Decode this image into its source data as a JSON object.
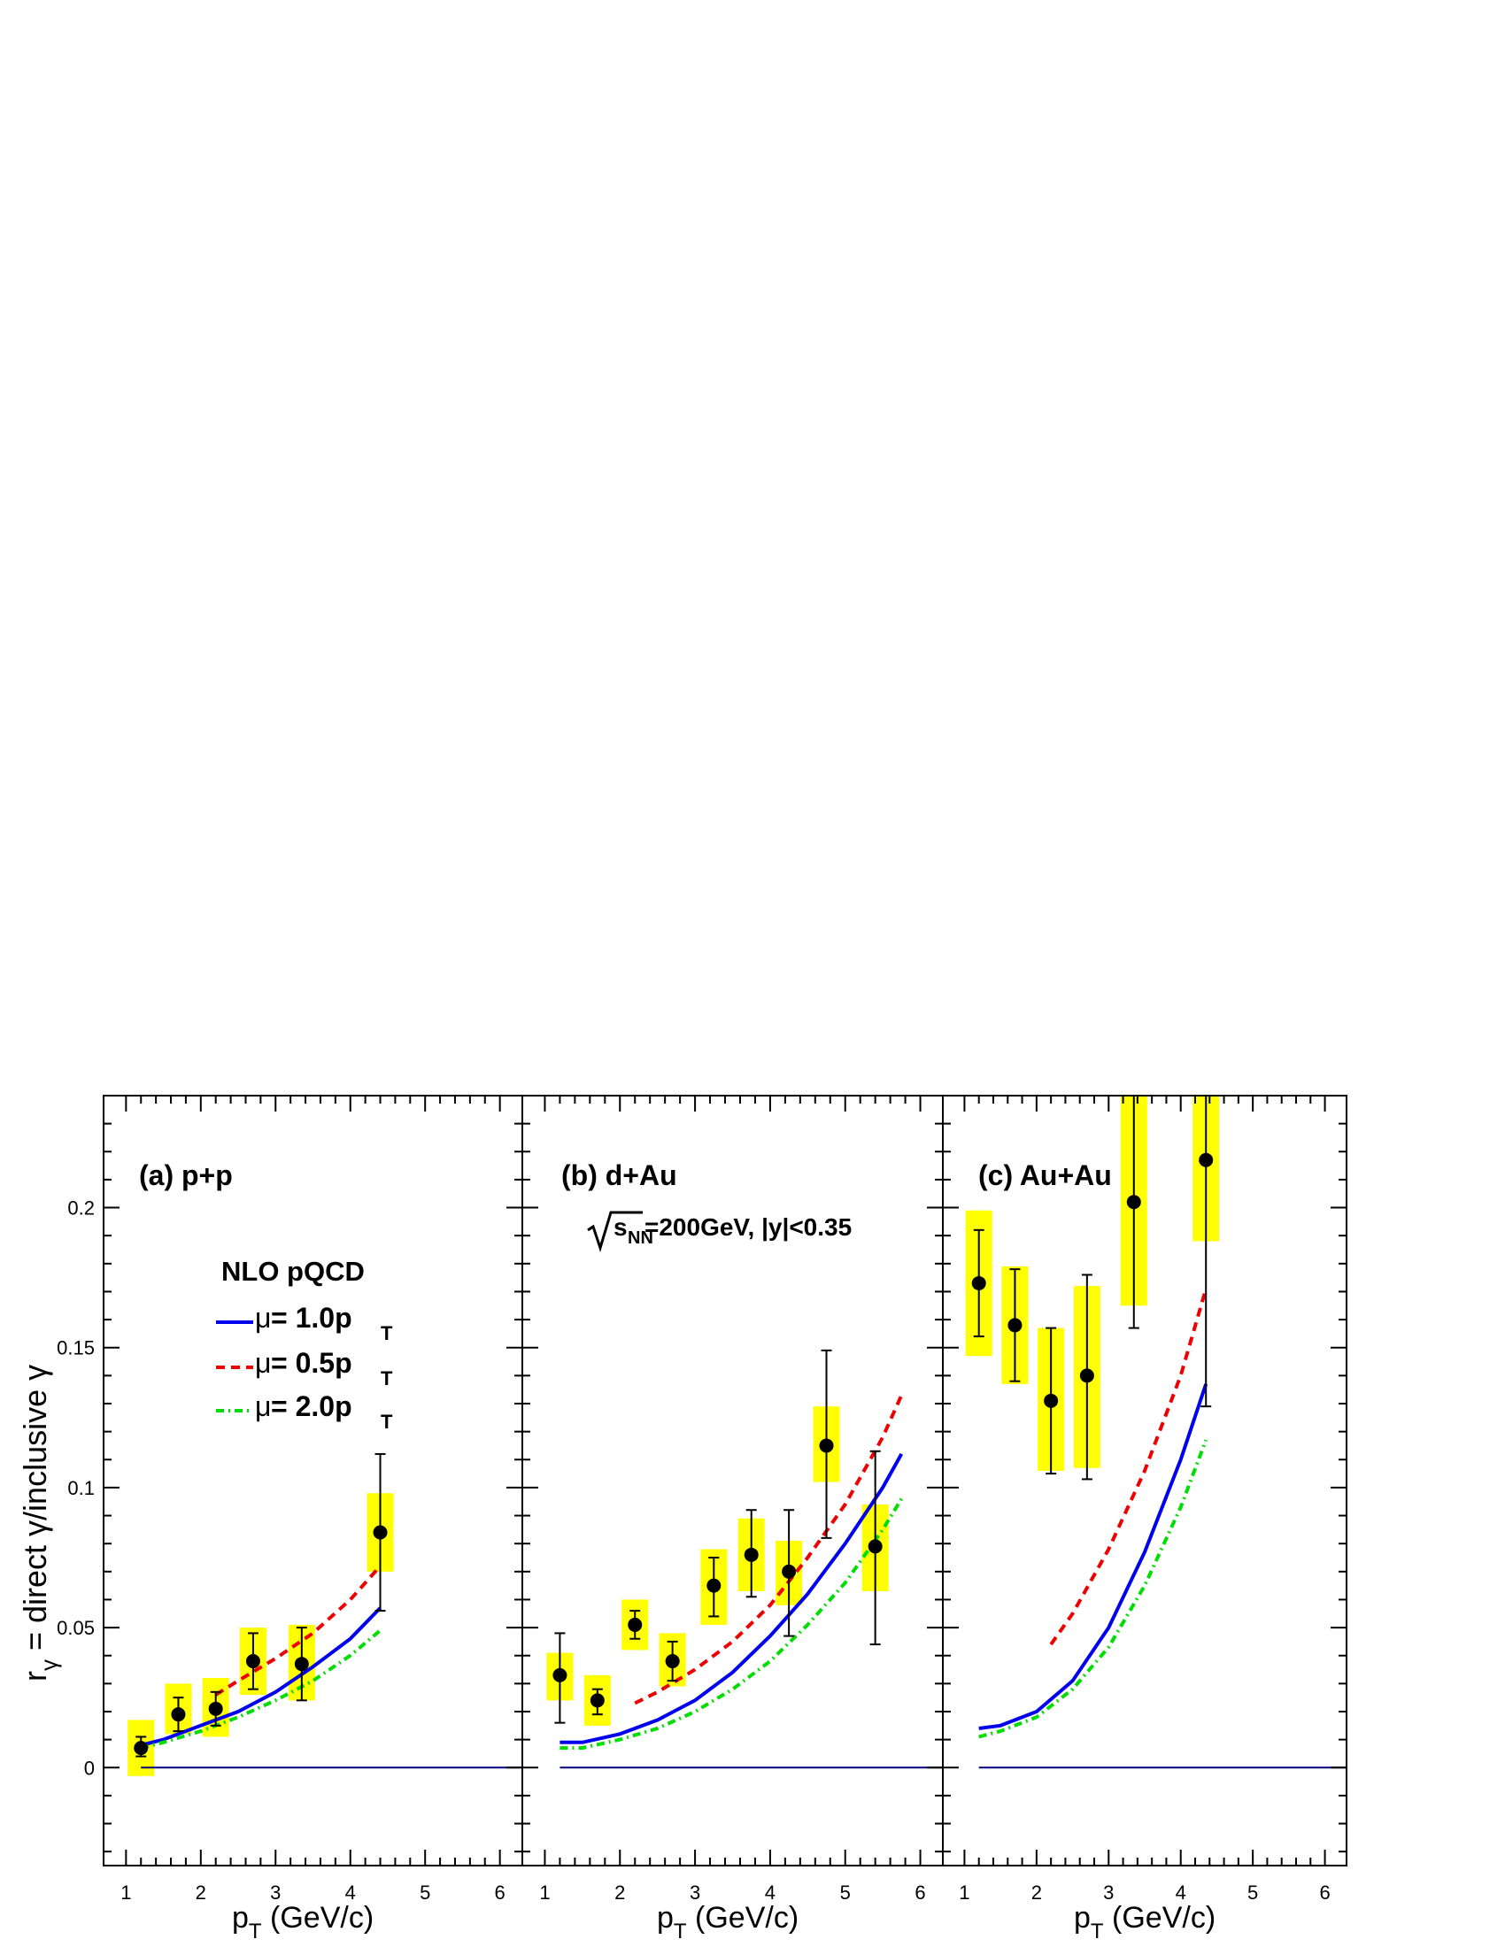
{
  "figure": {
    "ylabel": "r",
    "ylabel_sub": "γ",
    "ylabel_rest": " = direct γ/inclusive γ",
    "xlabel_main": "p",
    "xlabel_sub": "T",
    "xlabel_unit": " (GeV/c)",
    "annotation": {
      "sqrt_symbol": "√",
      "s": "s",
      "s_sub": "NN",
      "rest": "=200GeV, |y|<0.35"
    },
    "legend": {
      "title": "NLO pQCD",
      "entries": [
        {
          "mu": "μ",
          "label": " = 1.0p",
          "sub": "T",
          "color": "#0000ee",
          "style": "solid"
        },
        {
          "mu": "μ",
          "label": " = 0.5p",
          "sub": "T",
          "color": "#ee0000",
          "style": "dashed"
        },
        {
          "mu": "μ",
          "label": " = 2.0p",
          "sub": "T",
          "color": "#00dd00",
          "style": "dashdot"
        }
      ]
    },
    "colors": {
      "syst_box": "#ffff00",
      "point": "#000000",
      "zero_line": "#000080"
    }
  },
  "chart_data": [
    {
      "type": "scatter",
      "title": "(a) p+p",
      "xlabel": "pT (GeV/c)",
      "ylabel": "rγ = direct γ/inclusive γ",
      "xlim": [
        0.7,
        6.3
      ],
      "ylim": [
        -0.035,
        0.24
      ],
      "xticks": [
        1,
        2,
        3,
        4,
        5,
        6
      ],
      "yticks": [
        0,
        0.05,
        0.1,
        0.15,
        0.2
      ],
      "ytick_labels": [
        "0",
        "0.05",
        "0.1",
        "0.15",
        "0.2"
      ],
      "points": [
        {
          "x": 1.2,
          "y": 0.007,
          "stat_lo": 0.004,
          "stat_hi": 0.011,
          "sys_lo": -0.003,
          "sys_hi": 0.017
        },
        {
          "x": 1.7,
          "y": 0.019,
          "stat_lo": 0.013,
          "stat_hi": 0.025,
          "sys_lo": 0.012,
          "sys_hi": 0.03
        },
        {
          "x": 2.2,
          "y": 0.021,
          "stat_lo": 0.015,
          "stat_hi": 0.027,
          "sys_lo": 0.011,
          "sys_hi": 0.032
        },
        {
          "x": 2.7,
          "y": 0.038,
          "stat_lo": 0.028,
          "stat_hi": 0.048,
          "sys_lo": 0.026,
          "sys_hi": 0.05
        },
        {
          "x": 3.35,
          "y": 0.037,
          "stat_lo": 0.024,
          "stat_hi": 0.05,
          "sys_lo": 0.024,
          "sys_hi": 0.051
        },
        {
          "x": 4.4,
          "y": 0.084,
          "stat_lo": 0.056,
          "stat_hi": 0.112,
          "sys_lo": 0.07,
          "sys_hi": 0.098
        }
      ],
      "series": [
        {
          "name": "μ = 1.0pT",
          "style": "solid",
          "color": "#0000ee",
          "x": [
            1.2,
            1.5,
            2.0,
            2.5,
            3.0,
            3.5,
            4.0,
            4.4
          ],
          "y": [
            0.008,
            0.01,
            0.015,
            0.02,
            0.027,
            0.036,
            0.046,
            0.057
          ]
        },
        {
          "name": "μ = 0.5pT",
          "style": "dashed",
          "color": "#ee0000",
          "x": [
            2.2,
            2.5,
            3.0,
            3.5,
            4.0,
            4.4
          ],
          "y": [
            0.026,
            0.031,
            0.039,
            0.048,
            0.06,
            0.072
          ]
        },
        {
          "name": "μ = 2.0pT",
          "style": "dashdot",
          "color": "#00dd00",
          "x": [
            1.2,
            1.5,
            2.0,
            2.5,
            3.0,
            3.5,
            4.0,
            4.4
          ],
          "y": [
            0.007,
            0.009,
            0.013,
            0.018,
            0.024,
            0.031,
            0.04,
            0.049
          ]
        }
      ]
    },
    {
      "type": "scatter",
      "title": "(b) d+Au",
      "xlabel": "pT (GeV/c)",
      "ylabel": "",
      "xlim": [
        0.7,
        6.3
      ],
      "ylim": [
        -0.035,
        0.24
      ],
      "xticks": [
        1,
        2,
        3,
        4,
        5,
        6
      ],
      "yticks": [
        0,
        0.05,
        0.1,
        0.15,
        0.2
      ],
      "points": [
        {
          "x": 1.2,
          "y": 0.033,
          "stat_lo": 0.016,
          "stat_hi": 0.048,
          "sys_lo": 0.024,
          "sys_hi": 0.041
        },
        {
          "x": 1.7,
          "y": 0.024,
          "stat_lo": 0.019,
          "stat_hi": 0.028,
          "sys_lo": 0.015,
          "sys_hi": 0.033
        },
        {
          "x": 2.2,
          "y": 0.051,
          "stat_lo": 0.046,
          "stat_hi": 0.056,
          "sys_lo": 0.042,
          "sys_hi": 0.06
        },
        {
          "x": 2.7,
          "y": 0.038,
          "stat_lo": 0.031,
          "stat_hi": 0.045,
          "sys_lo": 0.029,
          "sys_hi": 0.048
        },
        {
          "x": 3.25,
          "y": 0.065,
          "stat_lo": 0.054,
          "stat_hi": 0.075,
          "sys_lo": 0.051,
          "sys_hi": 0.078
        },
        {
          "x": 3.75,
          "y": 0.076,
          "stat_lo": 0.061,
          "stat_hi": 0.092,
          "sys_lo": 0.063,
          "sys_hi": 0.089
        },
        {
          "x": 4.25,
          "y": 0.07,
          "stat_lo": 0.047,
          "stat_hi": 0.092,
          "sys_lo": 0.058,
          "sys_hi": 0.081
        },
        {
          "x": 4.75,
          "y": 0.115,
          "stat_lo": 0.082,
          "stat_hi": 0.149,
          "sys_lo": 0.102,
          "sys_hi": 0.129
        },
        {
          "x": 5.4,
          "y": 0.079,
          "stat_lo": 0.044,
          "stat_hi": 0.113,
          "sys_lo": 0.063,
          "sys_hi": 0.094
        }
      ],
      "series": [
        {
          "name": "μ = 1.0pT",
          "style": "solid",
          "color": "#0000ee",
          "x": [
            1.2,
            1.5,
            2.0,
            2.5,
            3.0,
            3.5,
            4.0,
            4.5,
            5.0,
            5.5,
            5.75
          ],
          "y": [
            0.009,
            0.009,
            0.012,
            0.017,
            0.024,
            0.034,
            0.047,
            0.062,
            0.08,
            0.1,
            0.112
          ]
        },
        {
          "name": "μ = 0.5pT",
          "style": "dashed",
          "color": "#ee0000",
          "x": [
            2.2,
            2.5,
            3.0,
            3.5,
            4.0,
            4.5,
            5.0,
            5.5,
            5.75
          ],
          "y": [
            0.023,
            0.027,
            0.035,
            0.045,
            0.058,
            0.075,
            0.094,
            0.118,
            0.133
          ]
        },
        {
          "name": "μ = 2.0pT",
          "style": "dashdot",
          "color": "#00dd00",
          "x": [
            1.2,
            1.5,
            2.0,
            2.5,
            3.0,
            3.5,
            4.0,
            4.5,
            5.0,
            5.5,
            5.75
          ],
          "y": [
            0.007,
            0.007,
            0.01,
            0.014,
            0.02,
            0.028,
            0.038,
            0.051,
            0.066,
            0.085,
            0.096
          ]
        }
      ]
    },
    {
      "type": "scatter",
      "title": "(c) Au+Au",
      "xlabel": "pT (GeV/c)",
      "ylabel": "",
      "xlim": [
        0.7,
        6.3
      ],
      "ylim": [
        -0.035,
        0.24
      ],
      "xticks": [
        1,
        2,
        3,
        4,
        5,
        6
      ],
      "yticks": [
        0,
        0.05,
        0.1,
        0.15,
        0.2
      ],
      "points": [
        {
          "x": 1.2,
          "y": 0.173,
          "stat_lo": 0.154,
          "stat_hi": 0.192,
          "sys_lo": 0.147,
          "sys_hi": 0.199
        },
        {
          "x": 1.7,
          "y": 0.158,
          "stat_lo": 0.138,
          "stat_hi": 0.178,
          "sys_lo": 0.137,
          "sys_hi": 0.179
        },
        {
          "x": 2.2,
          "y": 0.131,
          "stat_lo": 0.105,
          "stat_hi": 0.157,
          "sys_lo": 0.106,
          "sys_hi": 0.157
        },
        {
          "x": 2.7,
          "y": 0.14,
          "stat_lo": 0.103,
          "stat_hi": 0.176,
          "sys_lo": 0.107,
          "sys_hi": 0.172
        },
        {
          "x": 3.35,
          "y": 0.202,
          "stat_lo": 0.157,
          "stat_hi": 0.24,
          "sys_lo": 0.165,
          "sys_hi": 0.24
        },
        {
          "x": 4.35,
          "y": 0.217,
          "stat_lo": 0.129,
          "stat_hi": 0.24,
          "sys_lo": 0.188,
          "sys_hi": 0.24
        }
      ],
      "series": [
        {
          "name": "μ = 1.0pT",
          "style": "solid",
          "color": "#0000ee",
          "x": [
            1.2,
            1.5,
            2.0,
            2.5,
            3.0,
            3.5,
            4.0,
            4.35
          ],
          "y": [
            0.014,
            0.015,
            0.02,
            0.031,
            0.05,
            0.077,
            0.11,
            0.137
          ]
        },
        {
          "name": "μ = 0.5pT",
          "style": "dashed",
          "color": "#ee0000",
          "x": [
            2.2,
            2.5,
            3.0,
            3.5,
            4.0,
            4.35
          ],
          "y": [
            0.044,
            0.055,
            0.078,
            0.106,
            0.14,
            0.171
          ]
        },
        {
          "name": "μ = 2.0pT",
          "style": "dashdot",
          "color": "#00dd00",
          "x": [
            1.2,
            1.5,
            2.0,
            2.5,
            3.0,
            3.5,
            4.0,
            4.35
          ],
          "y": [
            0.011,
            0.013,
            0.018,
            0.028,
            0.043,
            0.065,
            0.093,
            0.117
          ]
        }
      ]
    }
  ]
}
